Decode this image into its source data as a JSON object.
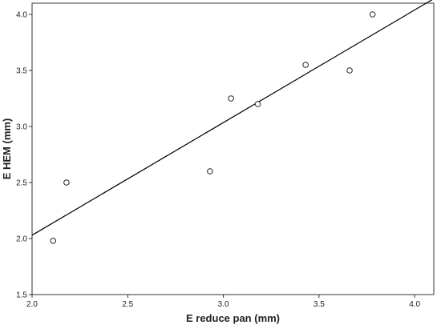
{
  "chart_data": {
    "type": "scatter",
    "title": "",
    "xlabel": "E reduce pan (mm)",
    "ylabel": "E HEM (mm)",
    "xlim": [
      2.0,
      4.1
    ],
    "ylim": [
      1.5,
      4.1
    ],
    "xticks": [
      2.0,
      2.5,
      3.0,
      3.5,
      4.0
    ],
    "yticks": [
      1.5,
      2.0,
      2.5,
      3.0,
      3.5,
      4.0
    ],
    "xtick_labels": [
      "2.0",
      "2.5",
      "3.0",
      "3.5",
      "4.0"
    ],
    "ytick_labels": [
      "1.5",
      "2.0",
      "2.5",
      "3.0",
      "3.5",
      "4.0"
    ],
    "grid": false,
    "legend": "none",
    "points": [
      {
        "x": 2.11,
        "y": 1.98
      },
      {
        "x": 2.18,
        "y": 2.5
      },
      {
        "x": 2.93,
        "y": 2.6
      },
      {
        "x": 3.04,
        "y": 3.25
      },
      {
        "x": 3.18,
        "y": 3.2
      },
      {
        "x": 3.43,
        "y": 3.55
      },
      {
        "x": 3.66,
        "y": 3.5
      },
      {
        "x": 3.78,
        "y": 4.0
      }
    ],
    "fit_line": {
      "type": "linear",
      "start": {
        "x": 2.0,
        "y": 2.03
      },
      "end": {
        "x": 4.1,
        "y": 4.14
      }
    },
    "colors": {
      "points": "#222222",
      "fit_line": "#000000",
      "axes": "#333333"
    }
  }
}
